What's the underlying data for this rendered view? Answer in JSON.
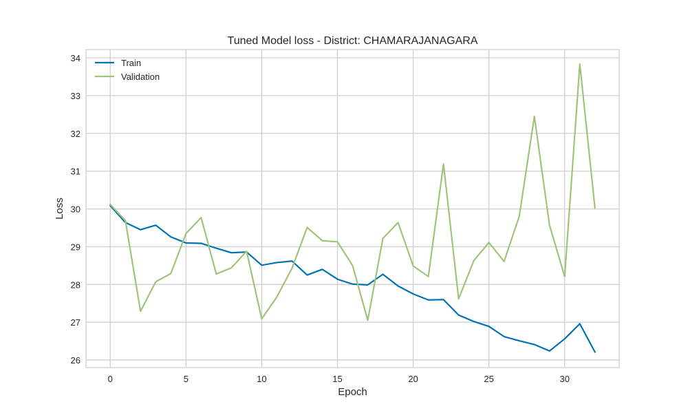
{
  "chart_data": {
    "type": "line",
    "title": "Tuned Model loss - District: CHAMARAJANAGARA",
    "xlabel": "Epoch",
    "ylabel": "Loss",
    "xlim": [
      -1.6,
      33.6
    ],
    "ylim": [
      25.8,
      34.22
    ],
    "xticks": [
      0,
      5,
      10,
      15,
      20,
      25,
      30
    ],
    "yticks": [
      26,
      27,
      28,
      29,
      30,
      31,
      32,
      33,
      34
    ],
    "grid": true,
    "legend_position": "upper-left",
    "x": [
      0,
      1,
      2,
      3,
      4,
      5,
      6,
      7,
      8,
      9,
      10,
      11,
      12,
      13,
      14,
      15,
      16,
      17,
      18,
      19,
      20,
      21,
      22,
      23,
      24,
      25,
      26,
      27,
      28,
      29,
      30,
      31,
      32
    ],
    "series": [
      {
        "name": "Train",
        "color": "#0072B2",
        "values": [
          30.09,
          29.64,
          29.45,
          29.57,
          29.26,
          29.1,
          29.09,
          28.96,
          28.84,
          28.86,
          28.51,
          28.58,
          28.62,
          28.25,
          28.4,
          28.14,
          28.01,
          27.99,
          28.27,
          27.96,
          27.75,
          27.59,
          27.6,
          27.19,
          27.02,
          26.89,
          26.62,
          26.51,
          26.41,
          26.24,
          26.56,
          26.96,
          26.21
        ]
      },
      {
        "name": "Validation",
        "color": "#9CC57A",
        "values": [
          30.12,
          29.69,
          27.29,
          28.07,
          28.29,
          29.35,
          29.77,
          28.28,
          28.44,
          28.88,
          27.09,
          27.67,
          28.43,
          29.51,
          29.16,
          29.13,
          28.5,
          27.05,
          29.22,
          29.64,
          28.49,
          28.21,
          31.19,
          27.62,
          28.63,
          29.11,
          28.61,
          29.8,
          32.45,
          29.57,
          28.21,
          33.84,
          30.02
        ]
      }
    ]
  }
}
